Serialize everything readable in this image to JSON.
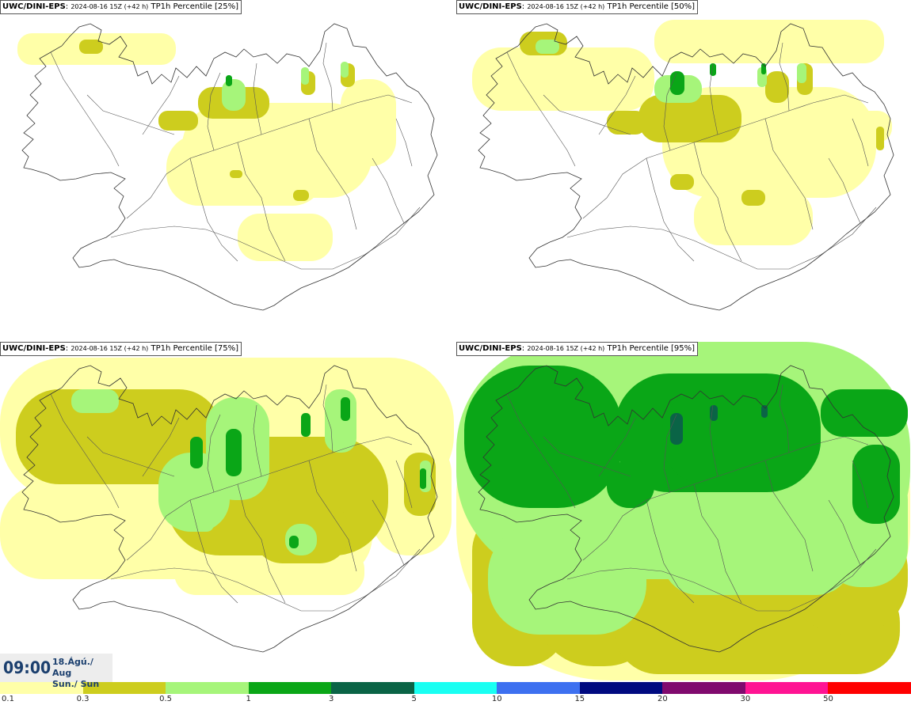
{
  "panels": [
    {
      "model": "UWC/DINI-EPS",
      "run": "2024-08-16 15Z (+42 h)",
      "field": "TP1h Percentile [25%]"
    },
    {
      "model": "UWC/DINI-EPS",
      "run": "2024-08-16 15Z (+42 h)",
      "field": "TP1h Percentile [50%]"
    },
    {
      "model": "UWC/DINI-EPS",
      "run": "2024-08-16 15Z (+42 h)",
      "field": "TP1h Percentile [75%]"
    },
    {
      "model": "UWC/DINI-EPS",
      "run": "2024-08-16 15Z (+42 h)",
      "field": "TP1h Percentile [95%]"
    }
  ],
  "clock": {
    "time": "09:00",
    "date": "18.Ágú./ Aug",
    "day": "Sun./ Sun"
  },
  "legend": {
    "labels": [
      "0.1",
      "0.3",
      "0.5",
      "1",
      "3",
      "5",
      "10",
      "15",
      "20",
      "30",
      "50"
    ],
    "colors": [
      "#ffffa8",
      "#cdcd1e",
      "#a6f57a",
      "#0aa617",
      "#0a6446",
      "#19fff2",
      "#3d70f0",
      "#000a80",
      "#800a6e",
      "#ff1493",
      "#ff0000"
    ]
  }
}
